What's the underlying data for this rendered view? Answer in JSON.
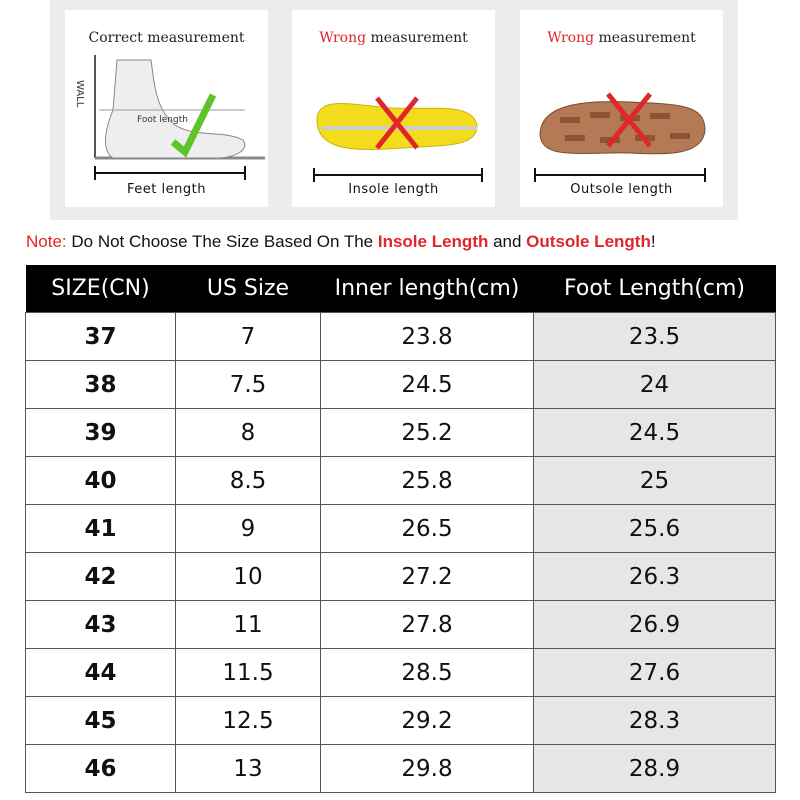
{
  "panels": [
    {
      "title": "Correct measurement",
      "wall": "WALL",
      "inner_label": "Foot length",
      "label": "Feet length"
    },
    {
      "title_warning": "Wrong",
      "title": "measurement",
      "label": "Insole length"
    },
    {
      "title_warning": "Wrong",
      "title": "measurement",
      "label": "Outsole length"
    }
  ],
  "note": {
    "label": "Note:",
    "text_1": " Do Not Choose The Size Based On The ",
    "highlight_1": "Insole Length",
    "text_2": " and ",
    "highlight_2": "Outsole Length",
    "end": "!"
  },
  "table": {
    "header": [
      "SIZE(CN)",
      "US Size",
      "Inner length(cm)",
      "Foot Length(cm)"
    ],
    "rows": [
      [
        37,
        7,
        23.8,
        23.5
      ],
      [
        38,
        7.5,
        24.5,
        24
      ],
      [
        39,
        8,
        25.2,
        24.5
      ],
      [
        40,
        8.5,
        25.8,
        25
      ],
      [
        41,
        9,
        26.5,
        25.6
      ],
      [
        42,
        10,
        27.2,
        26.3
      ],
      [
        43,
        11,
        27.8,
        26.9
      ],
      [
        44,
        11.5,
        28.5,
        27.6
      ],
      [
        45,
        12.5,
        29.2,
        28.3
      ],
      [
        46,
        13,
        29.8,
        28.9
      ]
    ]
  }
}
